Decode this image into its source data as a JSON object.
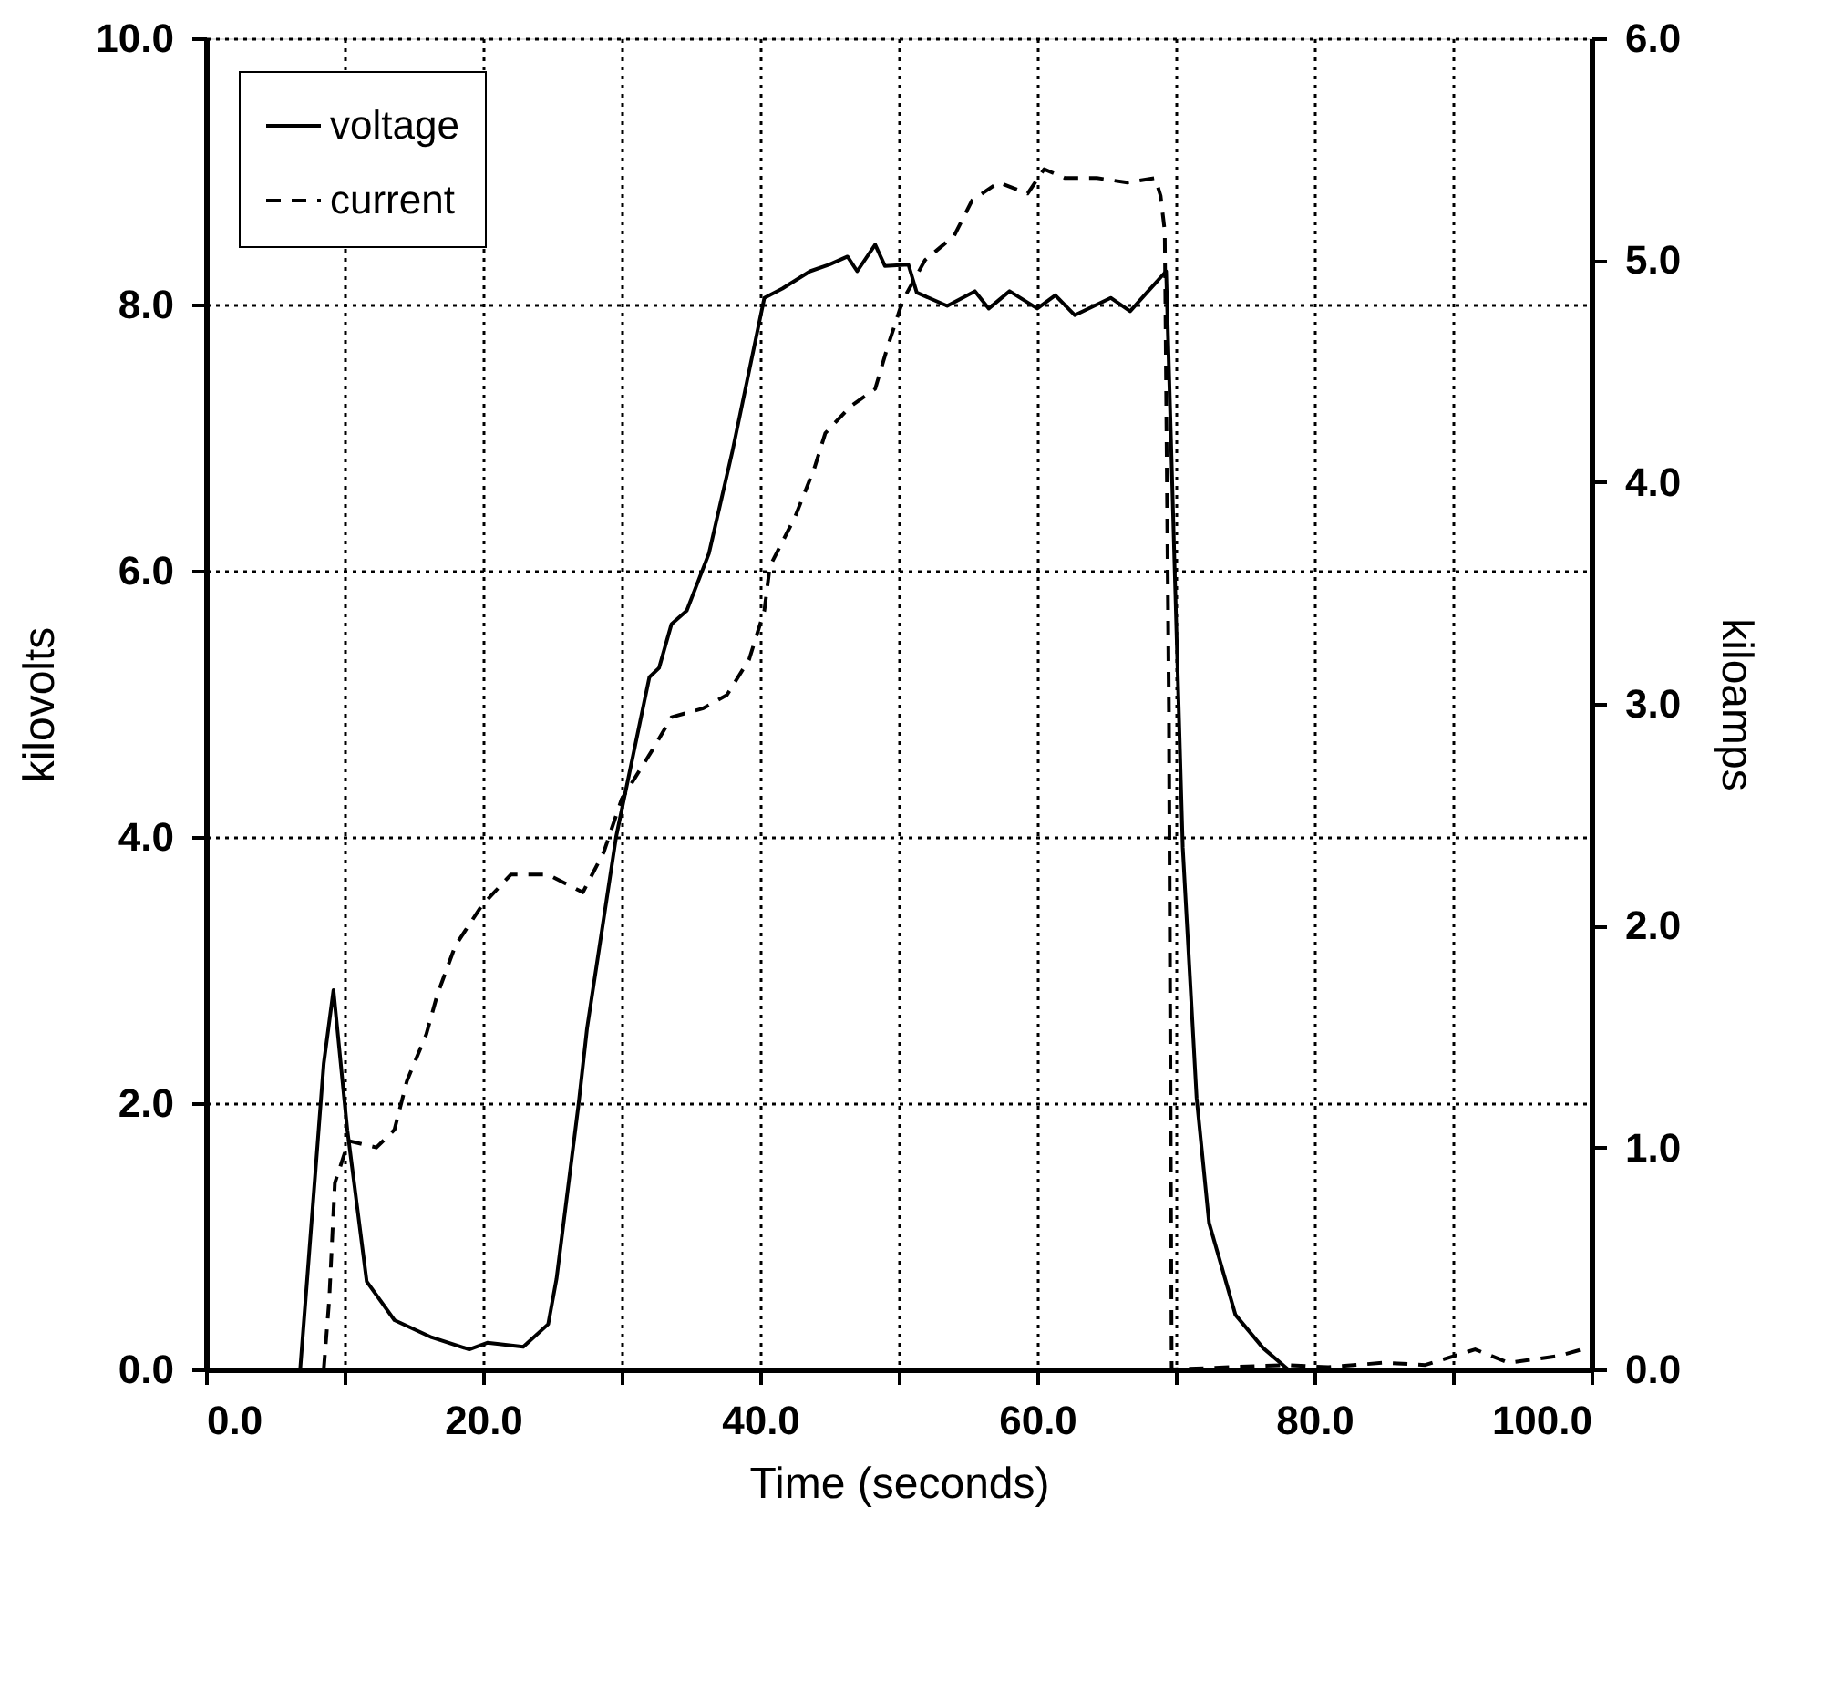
{
  "chart_data": {
    "type": "line",
    "xlabel": "Time (seconds)",
    "ylabel": "kilovolts",
    "y2label": "kiloamps",
    "xlim": [
      0,
      100
    ],
    "ylim": [
      0,
      10
    ],
    "y2lim": [
      0,
      6
    ],
    "xticks": [
      {
        "value": 0,
        "label": "0.0"
      },
      {
        "value": 10,
        "label": null
      },
      {
        "value": 20,
        "label": "20.0"
      },
      {
        "value": 30,
        "label": null
      },
      {
        "value": 40,
        "label": "40.0"
      },
      {
        "value": 50,
        "label": null
      },
      {
        "value": 60,
        "label": "60.0"
      },
      {
        "value": 70,
        "label": null
      },
      {
        "value": 80,
        "label": "80.0"
      },
      {
        "value": 90,
        "label": null
      },
      {
        "value": 100,
        "label": "100.0"
      }
    ],
    "yticks": [
      {
        "value": 0,
        "label": "0.0"
      },
      {
        "value": 2,
        "label": "2.0"
      },
      {
        "value": 4,
        "label": "4.0"
      },
      {
        "value": 6,
        "label": "6.0"
      },
      {
        "value": 8,
        "label": "8.0"
      },
      {
        "value": 10,
        "label": "10.0"
      }
    ],
    "y2ticks": [
      {
        "value": 0,
        "label": "0.0"
      },
      {
        "value": 1,
        "label": "1.0"
      },
      {
        "value": 2,
        "label": "2.0"
      },
      {
        "value": 3,
        "label": "3.0"
      },
      {
        "value": 4,
        "label": "4.0"
      },
      {
        "value": 5,
        "label": "5.0"
      },
      {
        "value": 6,
        "label": "6.0"
      }
    ],
    "grid": true,
    "legend": "top left",
    "marker": "none",
    "series": [
      {
        "name": "voltage",
        "color": "#000000",
        "line_style": "solid",
        "x": [
          6.8,
          8.5,
          9.2,
          10.2,
          11.6,
          13.6,
          16.3,
          19,
          20.3,
          22.9,
          24.7,
          25.3,
          26.9,
          27.5,
          29.6,
          32,
          32.7,
          33.6,
          34.7,
          36.3,
          38,
          40.3,
          41.6,
          43.6,
          45,
          46.3,
          47,
          48.3,
          49,
          50.7,
          51.3,
          53.5,
          55.5,
          56.5,
          58,
          60,
          61.3,
          62.7,
          65.3,
          66.7,
          68,
          69.3,
          69.9,
          70.5,
          71.5,
          72.4,
          74.3,
          76.3,
          78.1,
          100
        ],
        "values": [
          0,
          2.3,
          2.85,
          1.8,
          0.66,
          0.37,
          0.24,
          0.15,
          0.2,
          0.17,
          0.34,
          0.68,
          2.0,
          2.56,
          4.0,
          5.2,
          5.27,
          5.6,
          5.7,
          6.13,
          6.9,
          8.05,
          8.12,
          8.25,
          8.3,
          8.36,
          8.25,
          8.45,
          8.29,
          8.3,
          8.09,
          7.99,
          8.1,
          7.97,
          8.1,
          7.97,
          8.07,
          7.92,
          8.05,
          7.95,
          8.1,
          8.25,
          6.07,
          3.92,
          2.04,
          1.1,
          0.41,
          0.16,
          0,
          0
        ]
      },
      {
        "name": "current",
        "color": "#000000",
        "line_style": "dashed",
        "axis": "y2",
        "x": [
          8.5,
          8.9,
          9.3,
          10.3,
          12.3,
          13.6,
          14.5,
          15.9,
          16.7,
          18,
          19.9,
          22,
          24.7,
          27.2,
          28.7,
          30,
          31.3,
          32.3,
          33.6,
          35.9,
          37.6,
          39.2,
          40.3,
          40.7,
          42.5,
          43.9,
          44.7,
          46.5,
          48.3,
          49.2,
          50.3,
          51.9,
          54,
          55.3,
          57.2,
          59.3,
          60.5,
          62,
          64.3,
          66.5,
          68.5,
          68.9,
          69.2,
          69.5,
          69.7,
          78,
          81,
          85,
          88,
          91.6,
          94,
          97.6,
          99.3
        ],
        "values": [
          0,
          0.32,
          0.84,
          1.03,
          1.0,
          1.08,
          1.3,
          1.51,
          1.69,
          1.91,
          2.09,
          2.23,
          2.23,
          2.15,
          2.33,
          2.57,
          2.7,
          2.8,
          2.94,
          2.98,
          3.04,
          3.2,
          3.42,
          3.62,
          3.84,
          4.06,
          4.22,
          4.34,
          4.42,
          4.61,
          4.82,
          5.0,
          5.11,
          5.27,
          5.35,
          5.3,
          5.41,
          5.37,
          5.37,
          5.35,
          5.37,
          5.29,
          5.13,
          2.97,
          0,
          0.02,
          0.01,
          0.03,
          0.02,
          0.09,
          0.03,
          0.06,
          0.09
        ]
      }
    ]
  }
}
